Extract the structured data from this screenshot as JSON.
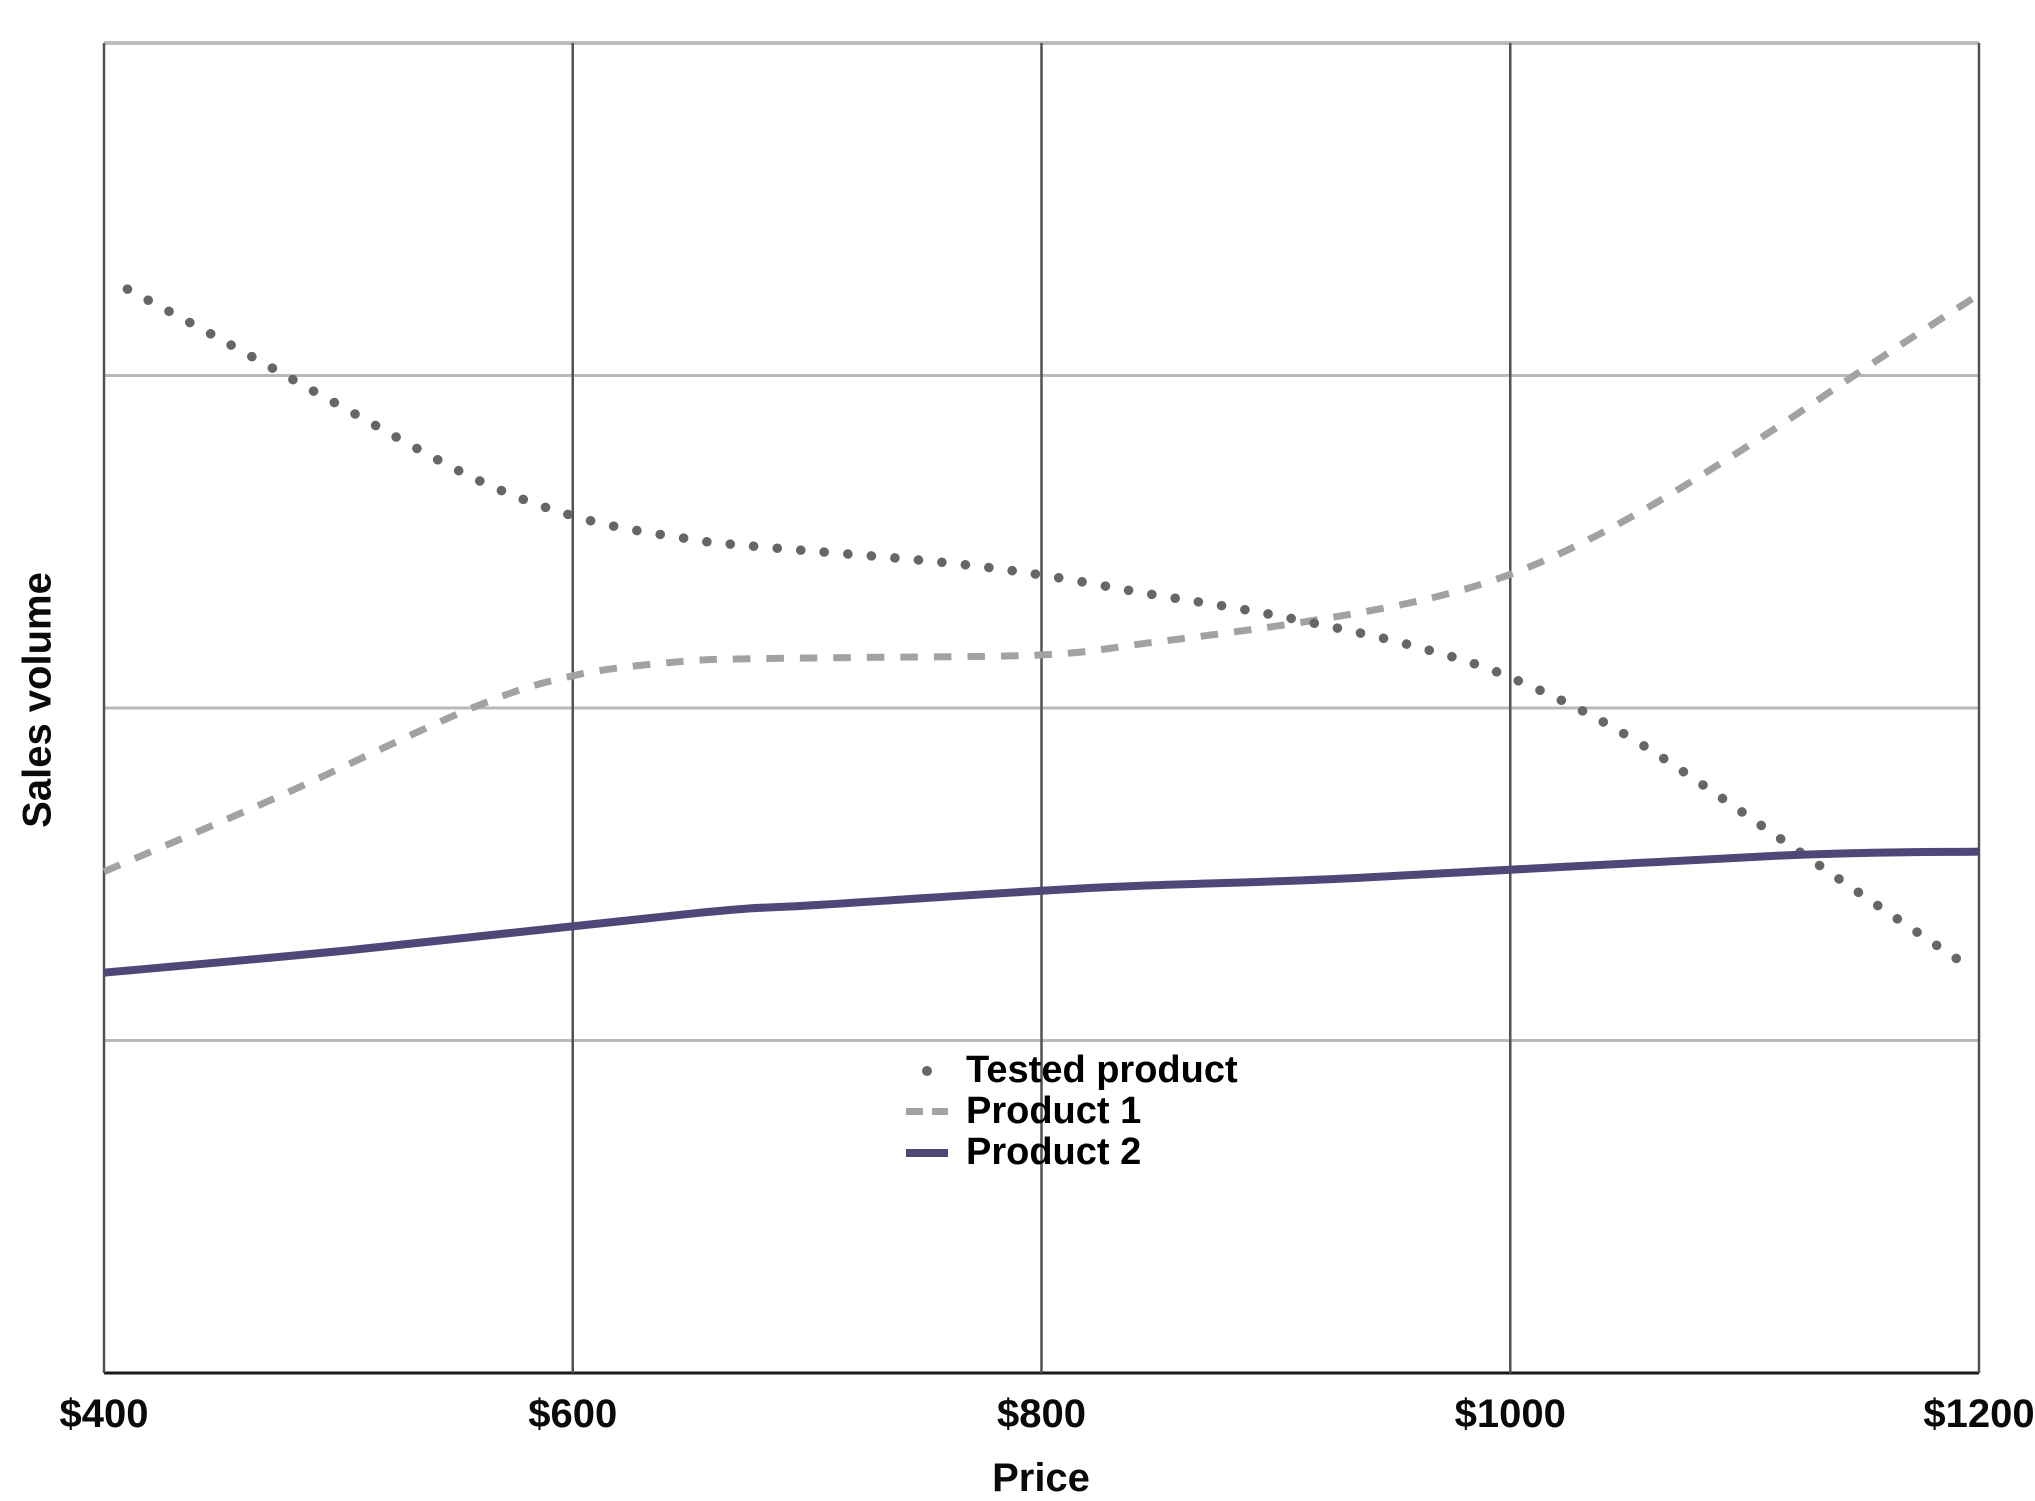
{
  "chart_data": {
    "type": "line",
    "title": "",
    "xlabel": "Price",
    "ylabel": "Sales volume",
    "xlim": [
      400,
      1200
    ],
    "ylim": [
      0,
      100
    ],
    "x_tick_values": [
      400,
      600,
      800,
      1000,
      1200
    ],
    "x_tick_labels": [
      "$400",
      "$600",
      "$800",
      "$1000",
      "$1200"
    ],
    "y_tick_labels": [],
    "y_gridline_values": [
      25,
      50,
      75
    ],
    "grid": "on",
    "legend_position": "inside-bottom-center",
    "note": "y axis has no numeric tick labels; sales volume values are arbitrary units 0-100",
    "colors": {
      "tested_product": "#666666",
      "product_1": "#a2a2a2",
      "product_2": "#4e4778",
      "vertical_grid": "#525252",
      "horizontal_grid": "#b9b9b9",
      "top_border": "#bdbdbd",
      "bottom_axis": "#1a1a1a",
      "label_text": "#0a0a0a"
    },
    "series": [
      {
        "name": "Tested product",
        "style": "dotted",
        "color": "#666666",
        "x": [
          410,
          450,
          500,
          560,
          605,
          650,
          675,
          755,
          800,
          845,
          880,
          913,
          958,
          1000,
          1052,
          1120,
          1158,
          1196
        ],
        "y": [
          81.5,
          77.7,
          72.8,
          67.1,
          64.2,
          62.7,
          62.2,
          61.0,
          60.0,
          58.6,
          57.6,
          56.5,
          54.7,
          52.3,
          47.7,
          39.6,
          35.0,
          30.5
        ]
      },
      {
        "name": "Product 1",
        "style": "dashed",
        "color": "#a2a2a2",
        "x": [
          400,
          474,
          557,
          602,
          647,
          675,
          723,
          801,
          846,
          913,
          967,
          1008,
          1052,
          1105,
          1157,
          1200
        ],
        "y": [
          37.7,
          43.3,
          50.0,
          52.5,
          53.5,
          53.7,
          53.8,
          54.0,
          54.9,
          56.5,
          58.3,
          60.6,
          64.4,
          70.1,
          76.2,
          81.1
        ]
      },
      {
        "name": "Product 2",
        "style": "solid",
        "color": "#4e4778",
        "x": [
          400,
          505,
          654,
          706,
          825,
          932,
          1115,
          1200
        ],
        "y": [
          30.1,
          31.8,
          34.6,
          35.2,
          36.5,
          37.2,
          38.9,
          39.2
        ]
      }
    ]
  }
}
